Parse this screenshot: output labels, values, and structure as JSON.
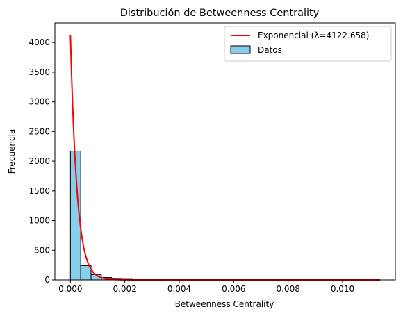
{
  "chart_data": {
    "type": "bar",
    "title": "Distribución de Betweenness Centrality",
    "xlabel": "Betweenness Centrality",
    "ylabel": "Frecuencia",
    "xlim": [
      -0.00057,
      0.01194
    ],
    "ylim": [
      0,
      4330
    ],
    "xticks": [
      0.0,
      0.002,
      0.004,
      0.006,
      0.008,
      0.01
    ],
    "xtick_labels": [
      "0.000",
      "0.002",
      "0.004",
      "0.006",
      "0.008",
      "0.010"
    ],
    "yticks": [
      0,
      500,
      1000,
      1500,
      2000,
      2500,
      3000,
      3500,
      4000
    ],
    "ytick_labels": [
      "0",
      "500",
      "1000",
      "1500",
      "2000",
      "2500",
      "3000",
      "3500",
      "4000"
    ],
    "grid": false,
    "legend_position": "top-right",
    "legend": [
      {
        "label": "Exponencial (λ=4122.658)",
        "kind": "line",
        "color": "#ff0000"
      },
      {
        "label": "Datos",
        "kind": "patch",
        "color": "#87ceeb"
      }
    ],
    "histogram": {
      "series_name": "Datos",
      "color": "#87ceeb",
      "edge_color": "#000000",
      "bin_start": 0.0,
      "bin_width": 0.000379,
      "counts": [
        2170,
        240,
        90,
        40,
        25,
        10,
        5,
        2,
        1,
        1,
        1,
        1,
        0,
        0,
        0,
        0,
        0,
        0,
        0,
        0,
        0,
        0,
        0,
        0,
        0,
        0,
        0,
        0,
        0,
        1
      ]
    },
    "fit_curve": {
      "series_name": "Exponencial (λ=4122.658)",
      "color": "#ff0000",
      "lambda": 4122.658,
      "x_range": [
        0.0,
        0.01137
      ]
    }
  }
}
